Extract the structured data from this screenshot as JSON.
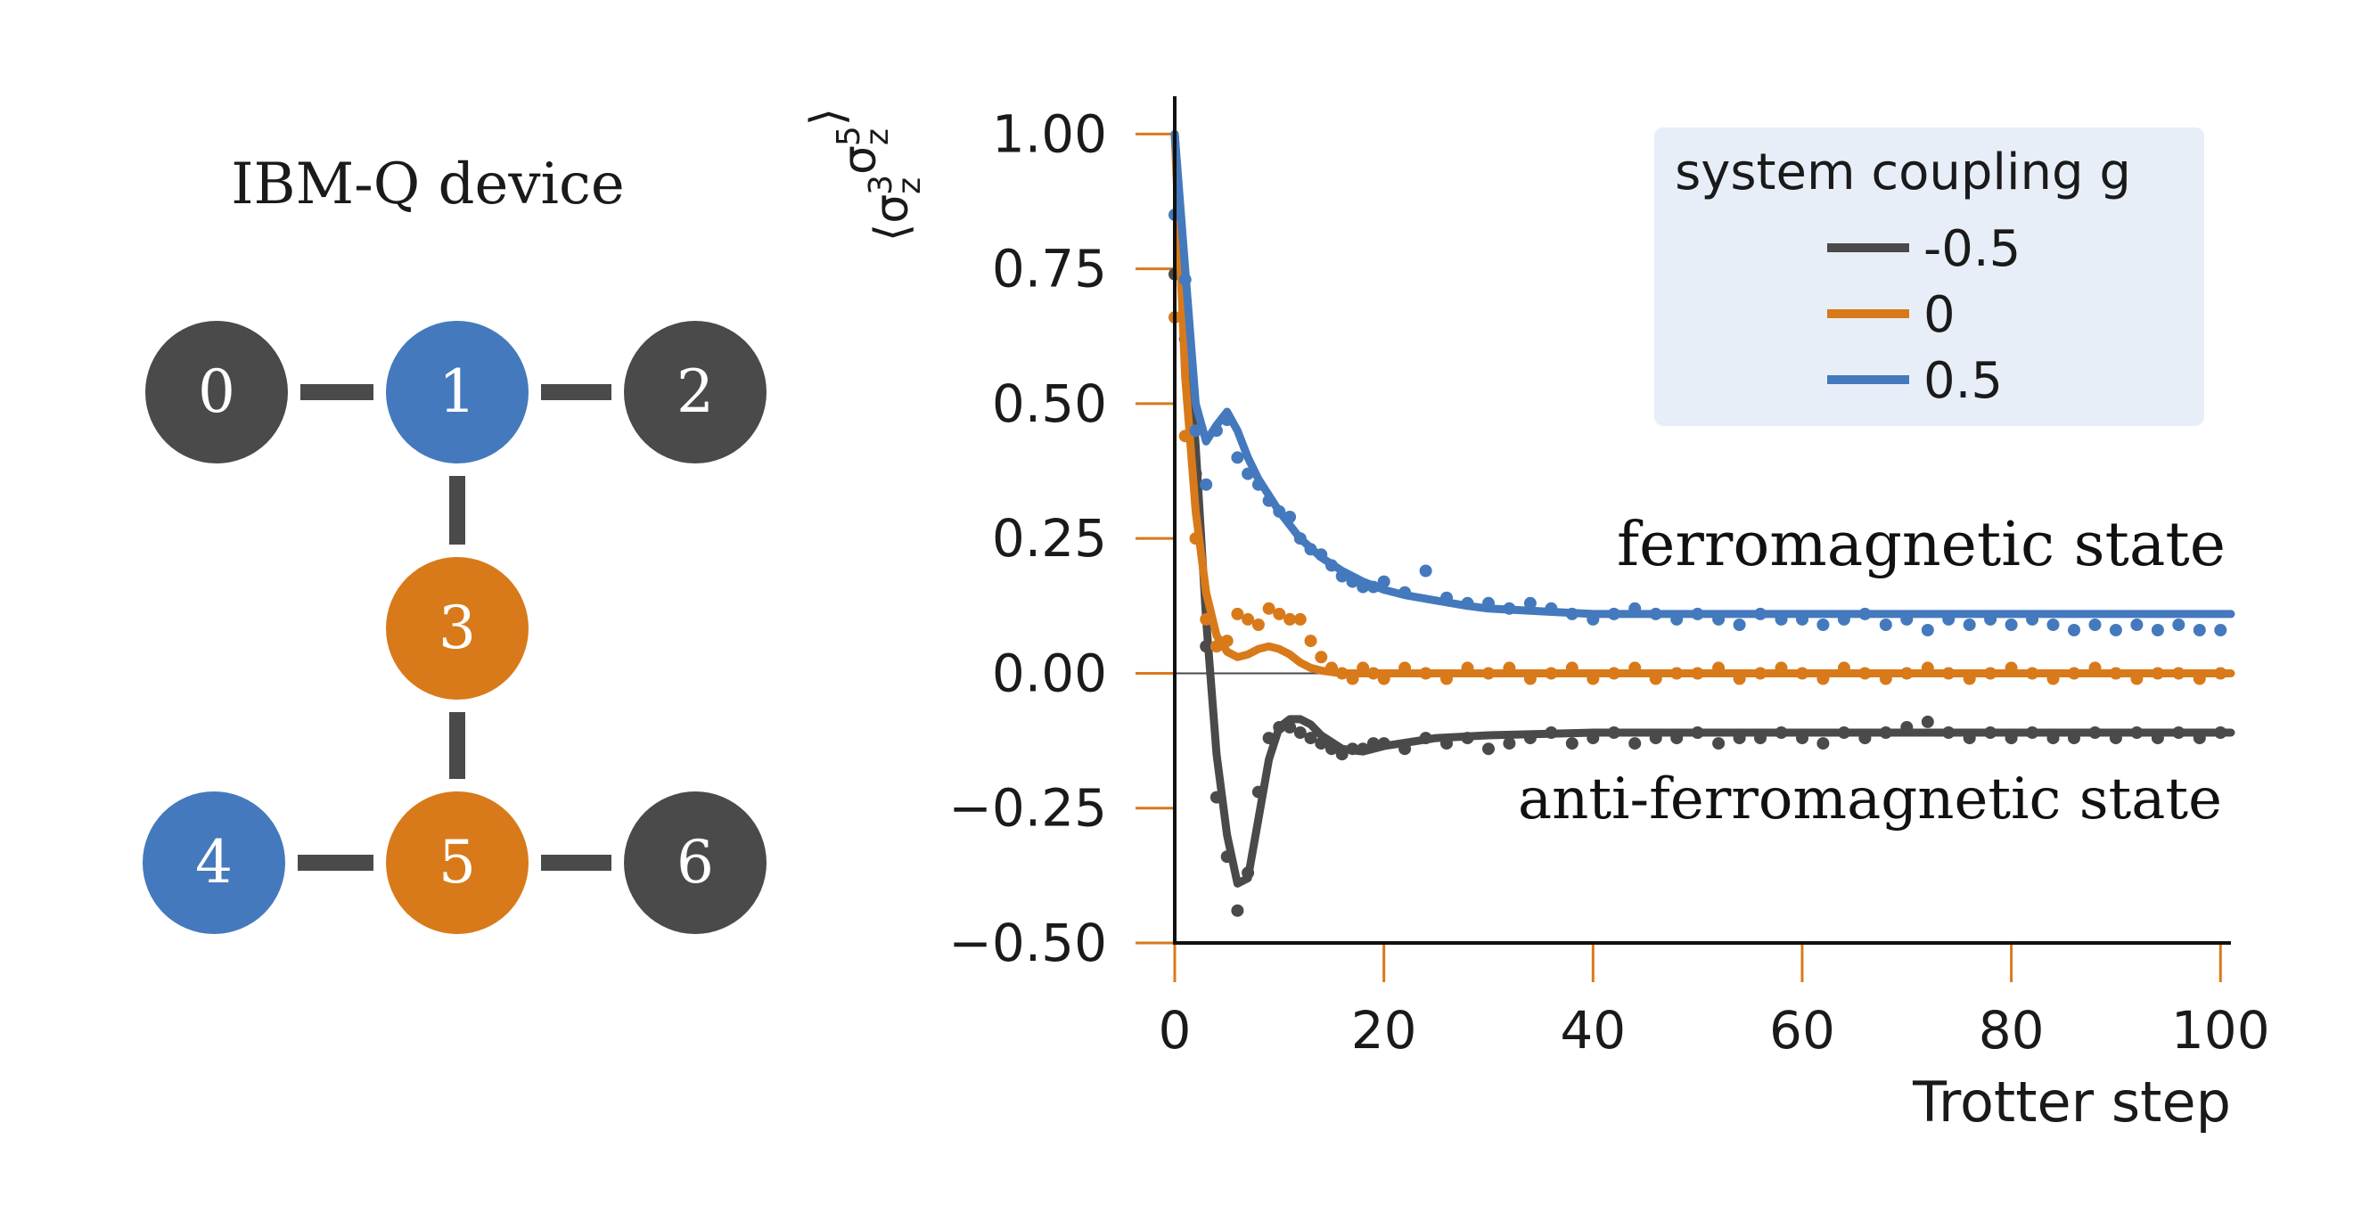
{
  "device": {
    "title": "IBM-Q device",
    "qubits": [
      {
        "label": "0",
        "role": "outer",
        "color": "#4a4a4a"
      },
      {
        "label": "1",
        "role": "boundary",
        "color": "#4479bd"
      },
      {
        "label": "2",
        "role": "outer",
        "color": "#4a4a4a"
      },
      {
        "label": "3",
        "role": "system",
        "color": "#d87a1a"
      },
      {
        "label": "4",
        "role": "boundary",
        "color": "#4479bd"
      },
      {
        "label": "5",
        "role": "system",
        "color": "#d87a1a"
      },
      {
        "label": "6",
        "role": "outer",
        "color": "#4a4a4a"
      }
    ],
    "couplings": [
      [
        "0",
        "1"
      ],
      [
        "1",
        "2"
      ],
      [
        "1",
        "3"
      ],
      [
        "3",
        "5"
      ],
      [
        "4",
        "5"
      ],
      [
        "5",
        "6"
      ]
    ],
    "edge_color": "#4a4a4a",
    "label_color": "#ffffff"
  },
  "chart_data": {
    "type": "line",
    "ylabel": "⟨σ_z^3 σ_z^5⟩",
    "xlabel": "Trotter step",
    "xlim": [
      0,
      101
    ],
    "ylim": [
      -0.5,
      1.07
    ],
    "x_ticks": [
      0,
      20,
      40,
      60,
      80,
      100
    ],
    "x_tick_labels": [
      "0",
      "20",
      "40",
      "60",
      "80",
      "100"
    ],
    "y_ticks": [
      1.0,
      0.75,
      0.5,
      0.25,
      0.0,
      -0.25,
      -0.5
    ],
    "y_tick_labels": [
      "1.00",
      "0.75",
      "0.50",
      "0.25",
      "0.00",
      "−0.25",
      "−0.50"
    ],
    "tick_color": "#d87a1a",
    "zero_line": true,
    "grid": false,
    "legend": {
      "title": "system coupling g",
      "placement": "top-right",
      "background": "#e8eef8"
    },
    "annotations": [
      "ferromagnetic state",
      "anti-ferromagnetic state"
    ],
    "series": [
      {
        "name": "-0.5",
        "color": "#4a4a4a",
        "line": {
          "x": [
            0,
            1,
            2,
            3,
            4,
            5,
            6,
            7,
            8,
            9,
            10,
            11,
            12,
            13,
            14,
            16,
            18,
            20,
            25,
            30,
            40,
            50,
            60,
            70,
            80,
            90,
            101
          ],
          "y": [
            1.0,
            0.72,
            0.42,
            0.1,
            -0.15,
            -0.3,
            -0.39,
            -0.38,
            -0.27,
            -0.16,
            -0.1,
            -0.085,
            -0.085,
            -0.095,
            -0.115,
            -0.14,
            -0.145,
            -0.135,
            -0.12,
            -0.115,
            -0.11,
            -0.11,
            -0.11,
            -0.11,
            -0.11,
            -0.11,
            -0.11
          ]
        },
        "points": {
          "x": [
            0,
            1,
            2,
            3,
            4,
            5,
            6,
            7,
            8,
            9,
            10,
            11,
            12,
            13,
            14,
            15,
            16,
            17,
            18,
            19,
            20,
            22,
            24,
            26,
            28,
            30,
            32,
            34,
            36,
            38,
            40,
            42,
            44,
            46,
            48,
            50,
            52,
            54,
            56,
            58,
            60,
            62,
            64,
            66,
            68,
            70,
            72,
            74,
            76,
            78,
            80,
            82,
            84,
            86,
            88,
            90,
            92,
            94,
            96,
            98,
            100
          ],
          "y": [
            0.74,
            0.62,
            0.37,
            0.05,
            -0.23,
            -0.34,
            -0.44,
            -0.37,
            -0.22,
            -0.12,
            -0.1,
            -0.1,
            -0.11,
            -0.12,
            -0.13,
            -0.14,
            -0.15,
            -0.14,
            -0.14,
            -0.13,
            -0.13,
            -0.14,
            -0.12,
            -0.13,
            -0.12,
            -0.14,
            -0.13,
            -0.12,
            -0.11,
            -0.13,
            -0.12,
            -0.11,
            -0.13,
            -0.12,
            -0.12,
            -0.11,
            -0.13,
            -0.12,
            -0.12,
            -0.11,
            -0.12,
            -0.13,
            -0.11,
            -0.12,
            -0.11,
            -0.1,
            -0.09,
            -0.11,
            -0.12,
            -0.11,
            -0.12,
            -0.11,
            -0.12,
            -0.12,
            -0.11,
            -0.12,
            -0.11,
            -0.12,
            -0.11,
            -0.12,
            -0.11
          ]
        }
      },
      {
        "name": "0",
        "color": "#d87a1a",
        "line": {
          "x": [
            0,
            1,
            2,
            3,
            4,
            5,
            6,
            7,
            8,
            9,
            10,
            11,
            12,
            13,
            14,
            16,
            18,
            20,
            25,
            30,
            40,
            50,
            60,
            70,
            80,
            90,
            101
          ],
          "y": [
            1.0,
            0.55,
            0.3,
            0.15,
            0.07,
            0.04,
            0.03,
            0.035,
            0.045,
            0.05,
            0.045,
            0.035,
            0.02,
            0.01,
            0.005,
            0.0,
            0.0,
            0.0,
            0.0,
            0.0,
            0.0,
            0.0,
            0.0,
            0.0,
            0.0,
            0.0,
            0.0
          ]
        },
        "points": {
          "x": [
            0,
            1,
            2,
            3,
            4,
            5,
            6,
            7,
            8,
            9,
            10,
            11,
            12,
            13,
            14,
            15,
            16,
            17,
            18,
            19,
            20,
            22,
            24,
            26,
            28,
            30,
            32,
            34,
            36,
            38,
            40,
            42,
            44,
            46,
            48,
            50,
            52,
            54,
            56,
            58,
            60,
            62,
            64,
            66,
            68,
            70,
            72,
            74,
            76,
            78,
            80,
            82,
            84,
            86,
            88,
            90,
            92,
            94,
            96,
            98,
            100
          ],
          "y": [
            0.66,
            0.44,
            0.25,
            0.1,
            0.05,
            0.06,
            0.11,
            0.1,
            0.09,
            0.12,
            0.11,
            0.1,
            0.1,
            0.06,
            0.03,
            0.01,
            0.0,
            -0.01,
            0.01,
            0.0,
            -0.01,
            0.01,
            0.0,
            -0.01,
            0.01,
            0.0,
            0.01,
            -0.01,
            0.0,
            0.01,
            -0.01,
            0.0,
            0.01,
            -0.01,
            0.0,
            0.0,
            0.01,
            -0.01,
            0.0,
            0.01,
            0.0,
            -0.01,
            0.01,
            0.0,
            -0.01,
            0.0,
            0.01,
            0.0,
            -0.01,
            0.0,
            0.01,
            0.0,
            -0.01,
            0.0,
            0.01,
            0.0,
            -0.01,
            0.0,
            0.0,
            -0.01,
            0.0
          ]
        }
      },
      {
        "name": "0.5",
        "color": "#4479bd",
        "line": {
          "x": [
            0,
            1,
            2,
            3,
            4,
            5,
            6,
            7,
            8,
            10,
            12,
            14,
            16,
            18,
            20,
            22,
            25,
            28,
            30,
            35,
            40,
            45,
            50,
            60,
            70,
            80,
            90,
            101
          ],
          "y": [
            1.0,
            0.75,
            0.5,
            0.43,
            0.46,
            0.485,
            0.45,
            0.4,
            0.36,
            0.3,
            0.25,
            0.215,
            0.19,
            0.17,
            0.155,
            0.145,
            0.135,
            0.125,
            0.12,
            0.115,
            0.11,
            0.11,
            0.11,
            0.11,
            0.11,
            0.11,
            0.11,
            0.11
          ]
        },
        "points": {
          "x": [
            0,
            1,
            2,
            3,
            4,
            5,
            6,
            7,
            8,
            9,
            10,
            11,
            12,
            13,
            14,
            15,
            16,
            17,
            18,
            19,
            20,
            22,
            24,
            26,
            28,
            30,
            32,
            34,
            36,
            38,
            40,
            42,
            44,
            46,
            48,
            50,
            52,
            54,
            56,
            58,
            60,
            62,
            64,
            66,
            68,
            70,
            72,
            74,
            76,
            78,
            80,
            82,
            84,
            86,
            88,
            90,
            92,
            94,
            96,
            98,
            100
          ],
          "y": [
            0.85,
            0.73,
            0.45,
            0.35,
            0.45,
            0.47,
            0.4,
            0.37,
            0.35,
            0.32,
            0.3,
            0.29,
            0.25,
            0.23,
            0.22,
            0.2,
            0.18,
            0.17,
            0.16,
            0.16,
            0.17,
            0.15,
            0.19,
            0.14,
            0.13,
            0.13,
            0.12,
            0.13,
            0.12,
            0.11,
            0.1,
            0.11,
            0.12,
            0.11,
            0.1,
            0.11,
            0.1,
            0.09,
            0.11,
            0.1,
            0.1,
            0.09,
            0.1,
            0.11,
            0.09,
            0.1,
            0.08,
            0.1,
            0.09,
            0.1,
            0.09,
            0.1,
            0.09,
            0.08,
            0.09,
            0.08,
            0.09,
            0.08,
            0.09,
            0.08,
            0.08
          ]
        }
      }
    ]
  }
}
